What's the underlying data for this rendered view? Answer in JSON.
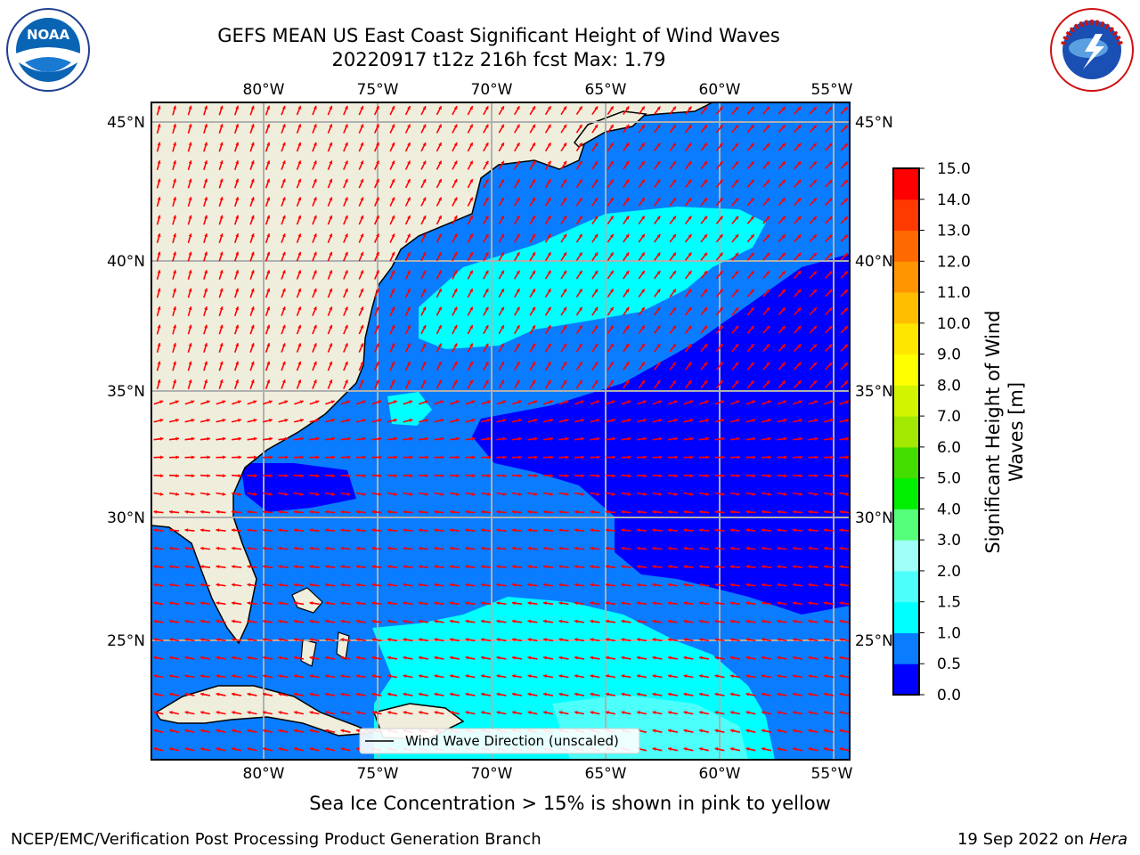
{
  "header": {
    "title_line1": "GEFS MEAN US East Coast Significant Height of Wind Waves",
    "title_line2": "20220917 t12z 216h fcst   Max: 1.79"
  },
  "logos": {
    "left": {
      "name": "noaa-logo",
      "text": "NOAA"
    },
    "right": {
      "name": "nws-logo",
      "text": "NATIONAL WEATHER SERVICE"
    }
  },
  "map": {
    "lon_labels": [
      "80°W",
      "75°W",
      "70°W",
      "65°W",
      "60°W",
      "55°W"
    ],
    "lat_labels": [
      "45°N",
      "40°N",
      "35°N",
      "30°N",
      "25°N"
    ],
    "legend_label": "Wind Wave Direction (unscaled)",
    "colors": {
      "land": "#efeedc",
      "coast": "#000000",
      "grid": "#b0b0b0",
      "arrow": "#ff0000"
    }
  },
  "colorbar": {
    "label_line1": "Significant Height of Wind",
    "label_line2": "Waves [m]",
    "levels": [
      "0.0",
      "0.5",
      "1.0",
      "1.5",
      "2.0",
      "3.0",
      "4.0",
      "5.0",
      "6.0",
      "7.0",
      "8.0",
      "9.0",
      "10.0",
      "11.0",
      "12.0",
      "13.0",
      "14.0",
      "15.0"
    ],
    "colors": [
      "#0000ff",
      "#0a7cff",
      "#00ffff",
      "#4cfffa",
      "#a0fff8",
      "#55ff7a",
      "#00ee00",
      "#44dd00",
      "#a2e800",
      "#d2f400",
      "#ffff00",
      "#ffe600",
      "#ffbf00",
      "#ff9500",
      "#ff6a00",
      "#ff3a00",
      "#ff0000"
    ]
  },
  "footer": {
    "note": "Sea Ice Concentration > 15% is shown in pink to yellow",
    "left": "NCEP/EMC/Verification Post Processing Product Generation Branch",
    "right_date": "19 Sep 2022 on",
    "right_host": "Hera"
  }
}
